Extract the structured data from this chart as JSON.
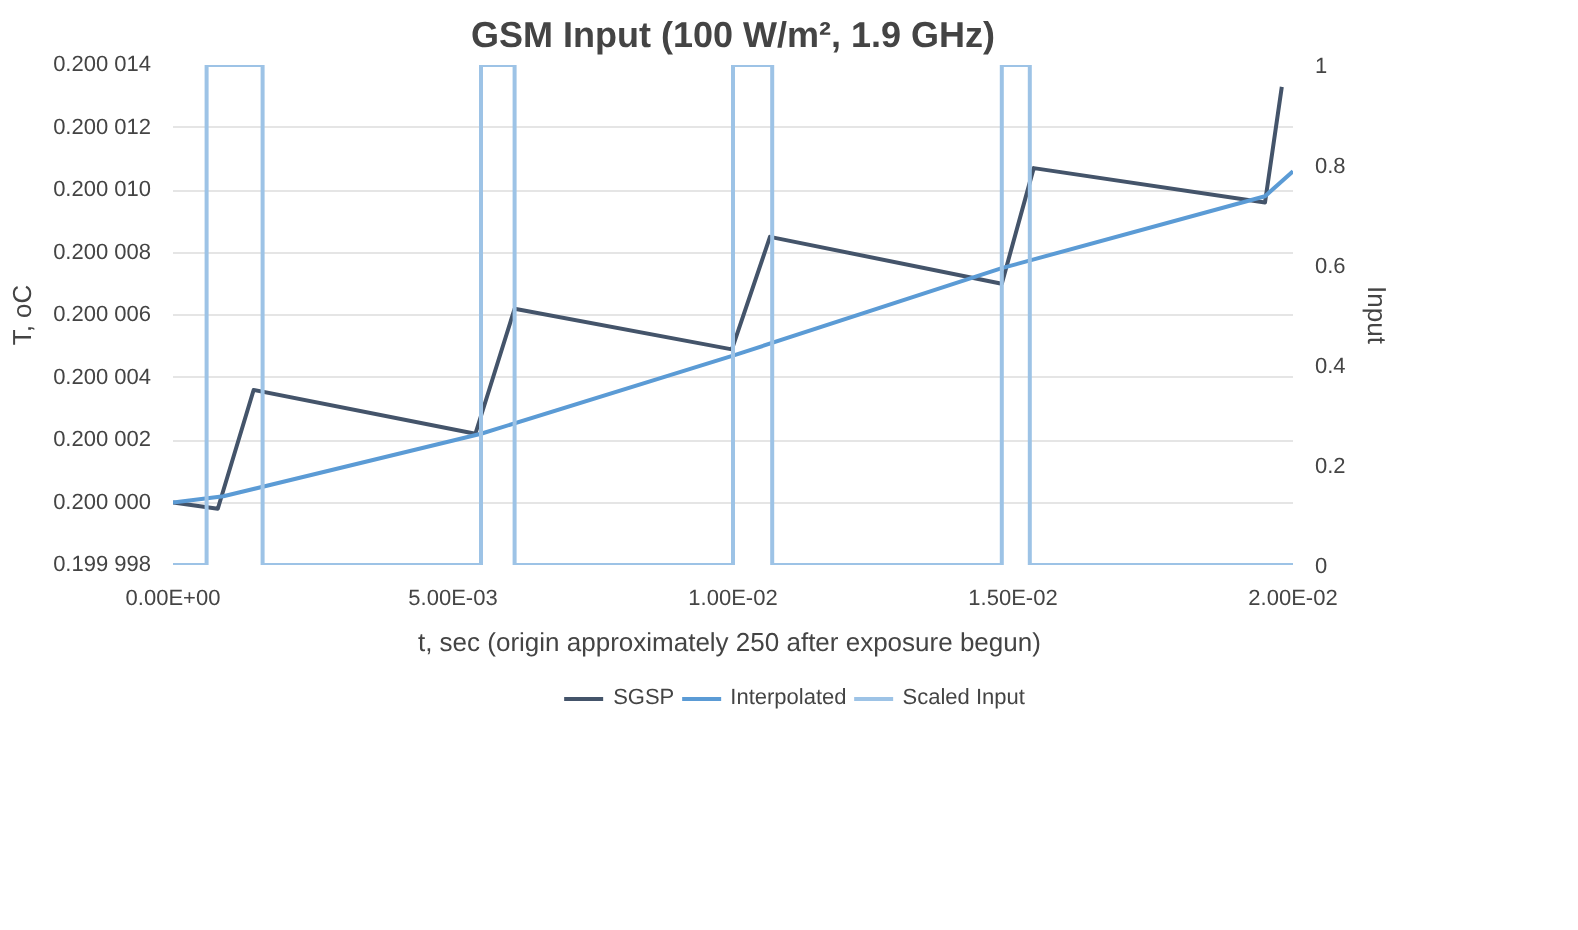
{
  "chart_data": {
    "type": "line",
    "title": "GSM Input (100 W/m², 1.9 GHz)",
    "xlabel": "t, sec  (origin approximately 250 after exposure begun)",
    "ylabel": "T, oC",
    "y2label": "Input",
    "xlim": [
      0,
      0.02
    ],
    "xticks": [
      {
        "value": 0,
        "label": "0.00E+00"
      },
      {
        "value": 0.005,
        "label": "5.00E-03"
      },
      {
        "value": 0.01,
        "label": "1.00E-02"
      },
      {
        "value": 0.015,
        "label": "1.50E-02"
      },
      {
        "value": 0.02,
        "label": "2.00E-02"
      }
    ],
    "ylim": [
      0.199998,
      0.200014
    ],
    "yticks": [
      {
        "value": 0.199998,
        "label": "0.199 998"
      },
      {
        "value": 0.2,
        "label": "0.200 000"
      },
      {
        "value": 0.200002,
        "label": "0.200 002"
      },
      {
        "value": 0.200004,
        "label": "0.200 004"
      },
      {
        "value": 0.200006,
        "label": "0.200 006"
      },
      {
        "value": 0.200008,
        "label": "0.200 008"
      },
      {
        "value": 0.20001,
        "label": "0.200 010"
      },
      {
        "value": 0.200012,
        "label": "0.200 012"
      },
      {
        "value": 0.200014,
        "label": "0.200 014"
      }
    ],
    "y2lim": [
      0,
      1
    ],
    "y2ticks": [
      0,
      0.2,
      0.4,
      0.6,
      0.8,
      1
    ],
    "grid": "y",
    "legend": "bottom",
    "line_style": "solid",
    "series": [
      {
        "name": "SGSP",
        "color": "#44546a",
        "x": [
          0,
          0.0008,
          0.00144,
          0.0054,
          0.0061,
          0.00998,
          0.01066,
          0.0148,
          0.01537,
          0.0195,
          0.0198
        ],
        "values": [
          0.2,
          0.1999998,
          0.2000036,
          0.2000022,
          0.2000062,
          0.2000049,
          0.2000085,
          0.200007,
          0.2000107,
          0.2000096,
          0.2000133
        ]
      },
      {
        "name": "Interpolated",
        "color": "#5b9bd5",
        "x": [
          0,
          0.0009,
          0.0055,
          0.01,
          0.0148,
          0.0195,
          0.02
        ],
        "values": [
          0.2,
          0.2000002,
          0.2000022,
          0.2000047,
          0.2000075,
          0.2000098,
          0.2000106
        ]
      },
      {
        "name": "Scaled Input",
        "color": "#9dc3e6",
        "axis": "y2",
        "x": [
          0,
          0.0006,
          0.0006,
          0.0016,
          0.0016,
          0.0055,
          0.0055,
          0.0061,
          0.0061,
          0.01,
          0.01,
          0.0107,
          0.0107,
          0.0148,
          0.0148,
          0.0153,
          0.0153,
          0.02
        ],
        "values": [
          0,
          0,
          1,
          1,
          0,
          0,
          1,
          1,
          0,
          0,
          1,
          1,
          0,
          0,
          1,
          1,
          0,
          0
        ]
      }
    ]
  }
}
